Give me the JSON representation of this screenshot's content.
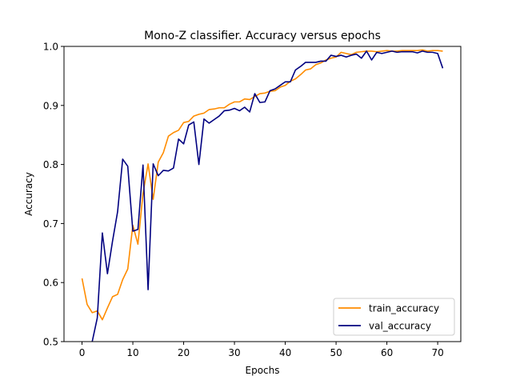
{
  "chart_data": {
    "type": "line",
    "title": "Mono-Z classifier. Accuracy versus epochs",
    "xlabel": "Epochs",
    "ylabel": "Accuracy",
    "xlim": [
      -3.55,
      74.55
    ],
    "ylim": [
      0.5,
      1.0
    ],
    "xticks": [
      0,
      10,
      20,
      30,
      40,
      50,
      60,
      70
    ],
    "yticks": [
      0.5,
      0.6,
      0.7,
      0.8,
      0.9,
      1.0
    ],
    "xtick_labels": [
      "0",
      "10",
      "20",
      "30",
      "40",
      "50",
      "60",
      "70"
    ],
    "ytick_labels": [
      "0.5",
      "0.6",
      "0.7",
      "0.8",
      "0.9",
      "1.0"
    ],
    "grid": false,
    "legend": "lower-right",
    "x": [
      0,
      1,
      2,
      3,
      4,
      5,
      6,
      7,
      8,
      9,
      10,
      11,
      12,
      13,
      14,
      15,
      16,
      17,
      18,
      19,
      20,
      21,
      22,
      23,
      24,
      25,
      26,
      27,
      28,
      29,
      30,
      31,
      32,
      33,
      34,
      35,
      36,
      37,
      38,
      39,
      40,
      41,
      42,
      43,
      44,
      45,
      46,
      47,
      48,
      49,
      50,
      51,
      52,
      53,
      54,
      55,
      56,
      57,
      58,
      59,
      60,
      61,
      62,
      63,
      64,
      65,
      66,
      67,
      68,
      69,
      70,
      71
    ],
    "series": [
      {
        "name": "train_accuracy",
        "color": "#ff8c00",
        "values": [
          0.607,
          0.563,
          0.549,
          0.552,
          0.537,
          0.557,
          0.576,
          0.58,
          0.605,
          0.623,
          0.697,
          0.665,
          0.751,
          0.801,
          0.741,
          0.804,
          0.82,
          0.848,
          0.854,
          0.858,
          0.871,
          0.873,
          0.882,
          0.885,
          0.887,
          0.893,
          0.894,
          0.896,
          0.896,
          0.902,
          0.906,
          0.906,
          0.911,
          0.91,
          0.915,
          0.92,
          0.921,
          0.924,
          0.925,
          0.931,
          0.934,
          0.941,
          0.945,
          0.952,
          0.96,
          0.962,
          0.969,
          0.972,
          0.977,
          0.98,
          0.982,
          0.99,
          0.988,
          0.986,
          0.99,
          0.991,
          0.992,
          0.992,
          0.991,
          0.992,
          0.993,
          0.992,
          0.992,
          0.993,
          0.993,
          0.993,
          0.993,
          0.994,
          0.992,
          0.993,
          0.993,
          0.992
        ]
      },
      {
        "name": "val_accuracy",
        "color": "#000080",
        "values": [
          0.485,
          0.475,
          0.5,
          0.54,
          0.684,
          0.615,
          0.67,
          0.72,
          0.809,
          0.797,
          0.687,
          0.69,
          0.799,
          0.588,
          0.801,
          0.781,
          0.79,
          0.789,
          0.794,
          0.843,
          0.835,
          0.867,
          0.872,
          0.8,
          0.877,
          0.87,
          0.876,
          0.882,
          0.891,
          0.892,
          0.895,
          0.891,
          0.897,
          0.889,
          0.92,
          0.905,
          0.906,
          0.925,
          0.928,
          0.934,
          0.94,
          0.94,
          0.96,
          0.966,
          0.973,
          0.973,
          0.973,
          0.975,
          0.975,
          0.985,
          0.983,
          0.985,
          0.982,
          0.985,
          0.987,
          0.98,
          0.992,
          0.977,
          0.99,
          0.988,
          0.99,
          0.992,
          0.99,
          0.991,
          0.991,
          0.991,
          0.989,
          0.992,
          0.99,
          0.99,
          0.988,
          0.963
        ]
      }
    ]
  }
}
